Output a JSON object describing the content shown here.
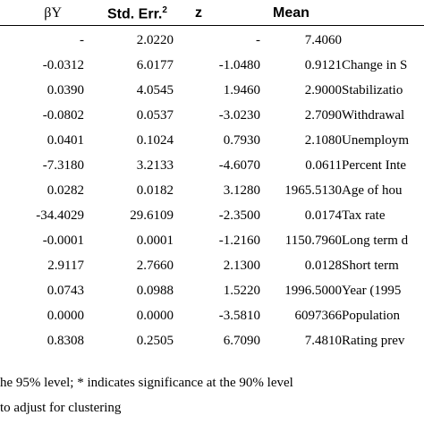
{
  "headers": {
    "beta_y": "βY",
    "std_err": "Std. Err.",
    "std_err_sup": "2",
    "z": "z",
    "mean": "Mean"
  },
  "rows": [
    {
      "beta": "-",
      "std_err": "2.0220",
      "z": "-",
      "mean": "7.4060",
      "label": ""
    },
    {
      "beta": "-0.0312",
      "std_err": "6.0177",
      "z": "-1.0480",
      "mean": "0.9121",
      "label": "Change in S"
    },
    {
      "beta": "0.0390",
      "std_err": "4.0545",
      "z": "1.9460",
      "mean": "2.9000",
      "label": "Stabilizatio"
    },
    {
      "beta": "-0.0802",
      "std_err": "0.0537",
      "z": "-3.0230",
      "mean": "2.7090",
      "label": "Withdrawal"
    },
    {
      "beta": "0.0401",
      "std_err": "0.1024",
      "z": "0.7930",
      "mean": "2.1080",
      "label": "Unemploym"
    },
    {
      "beta": "-7.3180",
      "std_err": "3.2133",
      "z": "-4.6070",
      "mean": "0.0611",
      "label": "Percent Inte"
    },
    {
      "beta": "0.0282",
      "std_err": "0.0182",
      "z": "3.1280",
      "mean": "1965.5130",
      "label": "Age of hou"
    },
    {
      "beta": "-34.4029",
      "std_err": "29.6109",
      "z": "-2.3500",
      "mean": "0.0174",
      "label": "Tax rate"
    },
    {
      "beta": "-0.0001",
      "std_err": "0.0001",
      "z": "-1.2160",
      "mean": "1150.7960",
      "label": "Long term d"
    },
    {
      "beta": "2.9117",
      "std_err": "2.7660",
      "z": "2.1300",
      "mean": "0.0128",
      "label": "Short term"
    },
    {
      "beta": "0.0743",
      "std_err": "0.0988",
      "z": "1.5220",
      "mean": "1996.5000",
      "label": "Year (1995"
    },
    {
      "beta": "0.0000",
      "std_err": "0.0000",
      "z": "-3.5810",
      "mean": "6097366",
      "label": "Population"
    },
    {
      "beta": "0.8308",
      "std_err": "0.2505",
      "z": "6.7090",
      "mean": "7.4810",
      "label": "Rating prev"
    }
  ],
  "footnotes": [
    "he 95% level; * indicates significance at the 90% level",
    "to adjust for clustering"
  ]
}
